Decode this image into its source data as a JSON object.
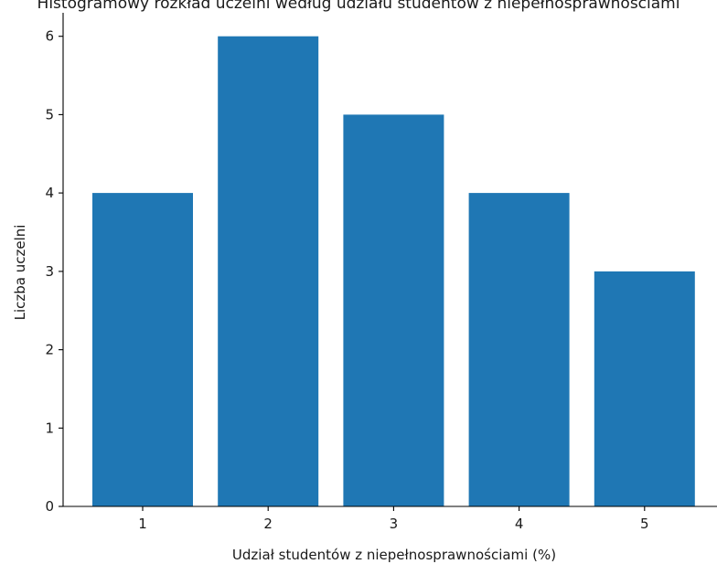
{
  "chart_data": {
    "type": "bar",
    "title": "Histogramowy rozkład uczelni według udziału studentów z niepełnosprawnościami",
    "xlabel": "Udział studentów z niepełnosprawnościami (%)",
    "ylabel": "Liczba uczelni",
    "categories": [
      "1",
      "2",
      "3",
      "4",
      "5"
    ],
    "values": [
      4,
      6,
      5,
      4,
      3
    ],
    "ylim": [
      0,
      6.3
    ],
    "yticks": [
      "0",
      "1",
      "2",
      "3",
      "4",
      "5",
      "6"
    ],
    "grid": false,
    "bar_color": "#1f77b4"
  }
}
